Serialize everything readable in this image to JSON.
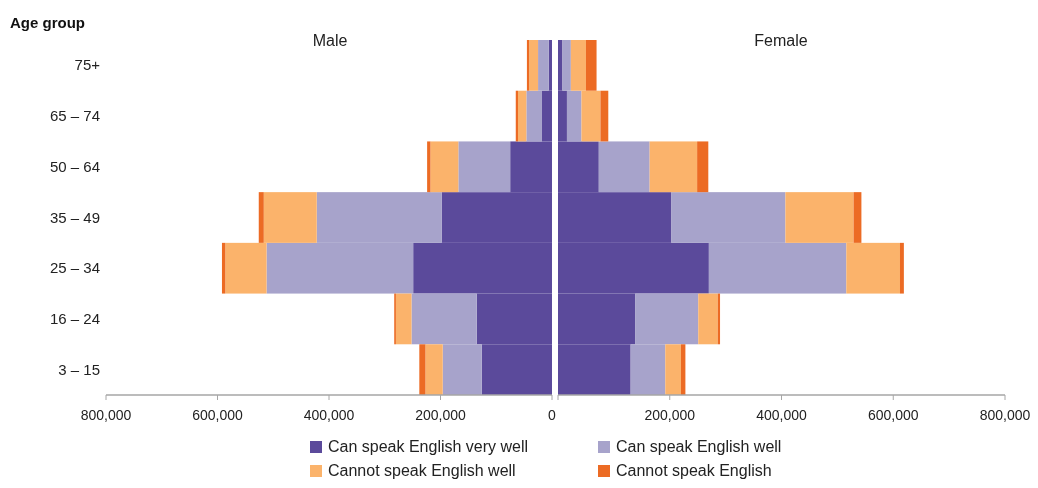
{
  "chart_data": [
    {
      "type": "bar",
      "title": "Male",
      "ylabel": "Age group",
      "orientation": "horizontal",
      "stacked": true,
      "legend": "bottom",
      "categories": [
        "75+",
        "65 – 74",
        "50 – 64",
        "35 – 49",
        "25 – 34",
        "16 – 24",
        "3 – 15"
      ],
      "xlim": [
        800000,
        0
      ],
      "xticks": [
        {
          "value": 800000,
          "label": "800,000"
        },
        {
          "value": 600000,
          "label": "600,000"
        },
        {
          "value": 400000,
          "label": "400,000"
        },
        {
          "value": 200000,
          "label": "200,000"
        },
        0
      ],
      "series": [
        {
          "name": "Can speak English very well",
          "color": "#5b4a9b",
          "values": [
            6000,
            18000,
            75000,
            198000,
            249000,
            135000,
            126000
          ]
        },
        {
          "name": "Can speak English well",
          "color": "#a7a3cb",
          "values": [
            19000,
            28000,
            93000,
            224000,
            263000,
            117000,
            70000
          ]
        },
        {
          "name": "Cannot speak English well",
          "color": "#fbb36b",
          "values": [
            16000,
            15000,
            50000,
            95000,
            74000,
            28000,
            31000
          ]
        },
        {
          "name": "Cannot speak English",
          "color": "#ec6b24",
          "values": [
            4000,
            4000,
            6000,
            9000,
            6000,
            3000,
            11000
          ]
        }
      ]
    },
    {
      "type": "bar",
      "title": "Female",
      "orientation": "horizontal",
      "stacked": true,
      "tick_labels": "x",
      "categories": [
        null,
        null,
        null,
        null,
        null,
        null,
        null
      ],
      "xlim": [
        0,
        800000
      ],
      "xticks": [
        {
          "value": 0,
          "label": null
        },
        {
          "value": 200000,
          "label": "200,000"
        },
        {
          "value": 400000,
          "label": "400,000"
        },
        {
          "value": 600000,
          "label": "600,000"
        },
        {
          "value": 800000,
          "label": "800,000"
        }
      ],
      "series": [
        {
          "color": "#5b4a9b",
          "values": [
            8000,
            16000,
            73000,
            203000,
            270000,
            138000,
            130000
          ]
        },
        {
          "color": "#a7a3cb",
          "values": [
            15000,
            26000,
            91000,
            204000,
            246000,
            113000,
            62000
          ]
        },
        {
          "color": "#fbb36b",
          "values": [
            27000,
            34000,
            85000,
            122000,
            96000,
            35000,
            28000
          ]
        },
        {
          "color": "#ec6b24",
          "values": [
            19000,
            14000,
            20000,
            14000,
            7000,
            4000,
            8000
          ]
        }
      ]
    }
  ]
}
